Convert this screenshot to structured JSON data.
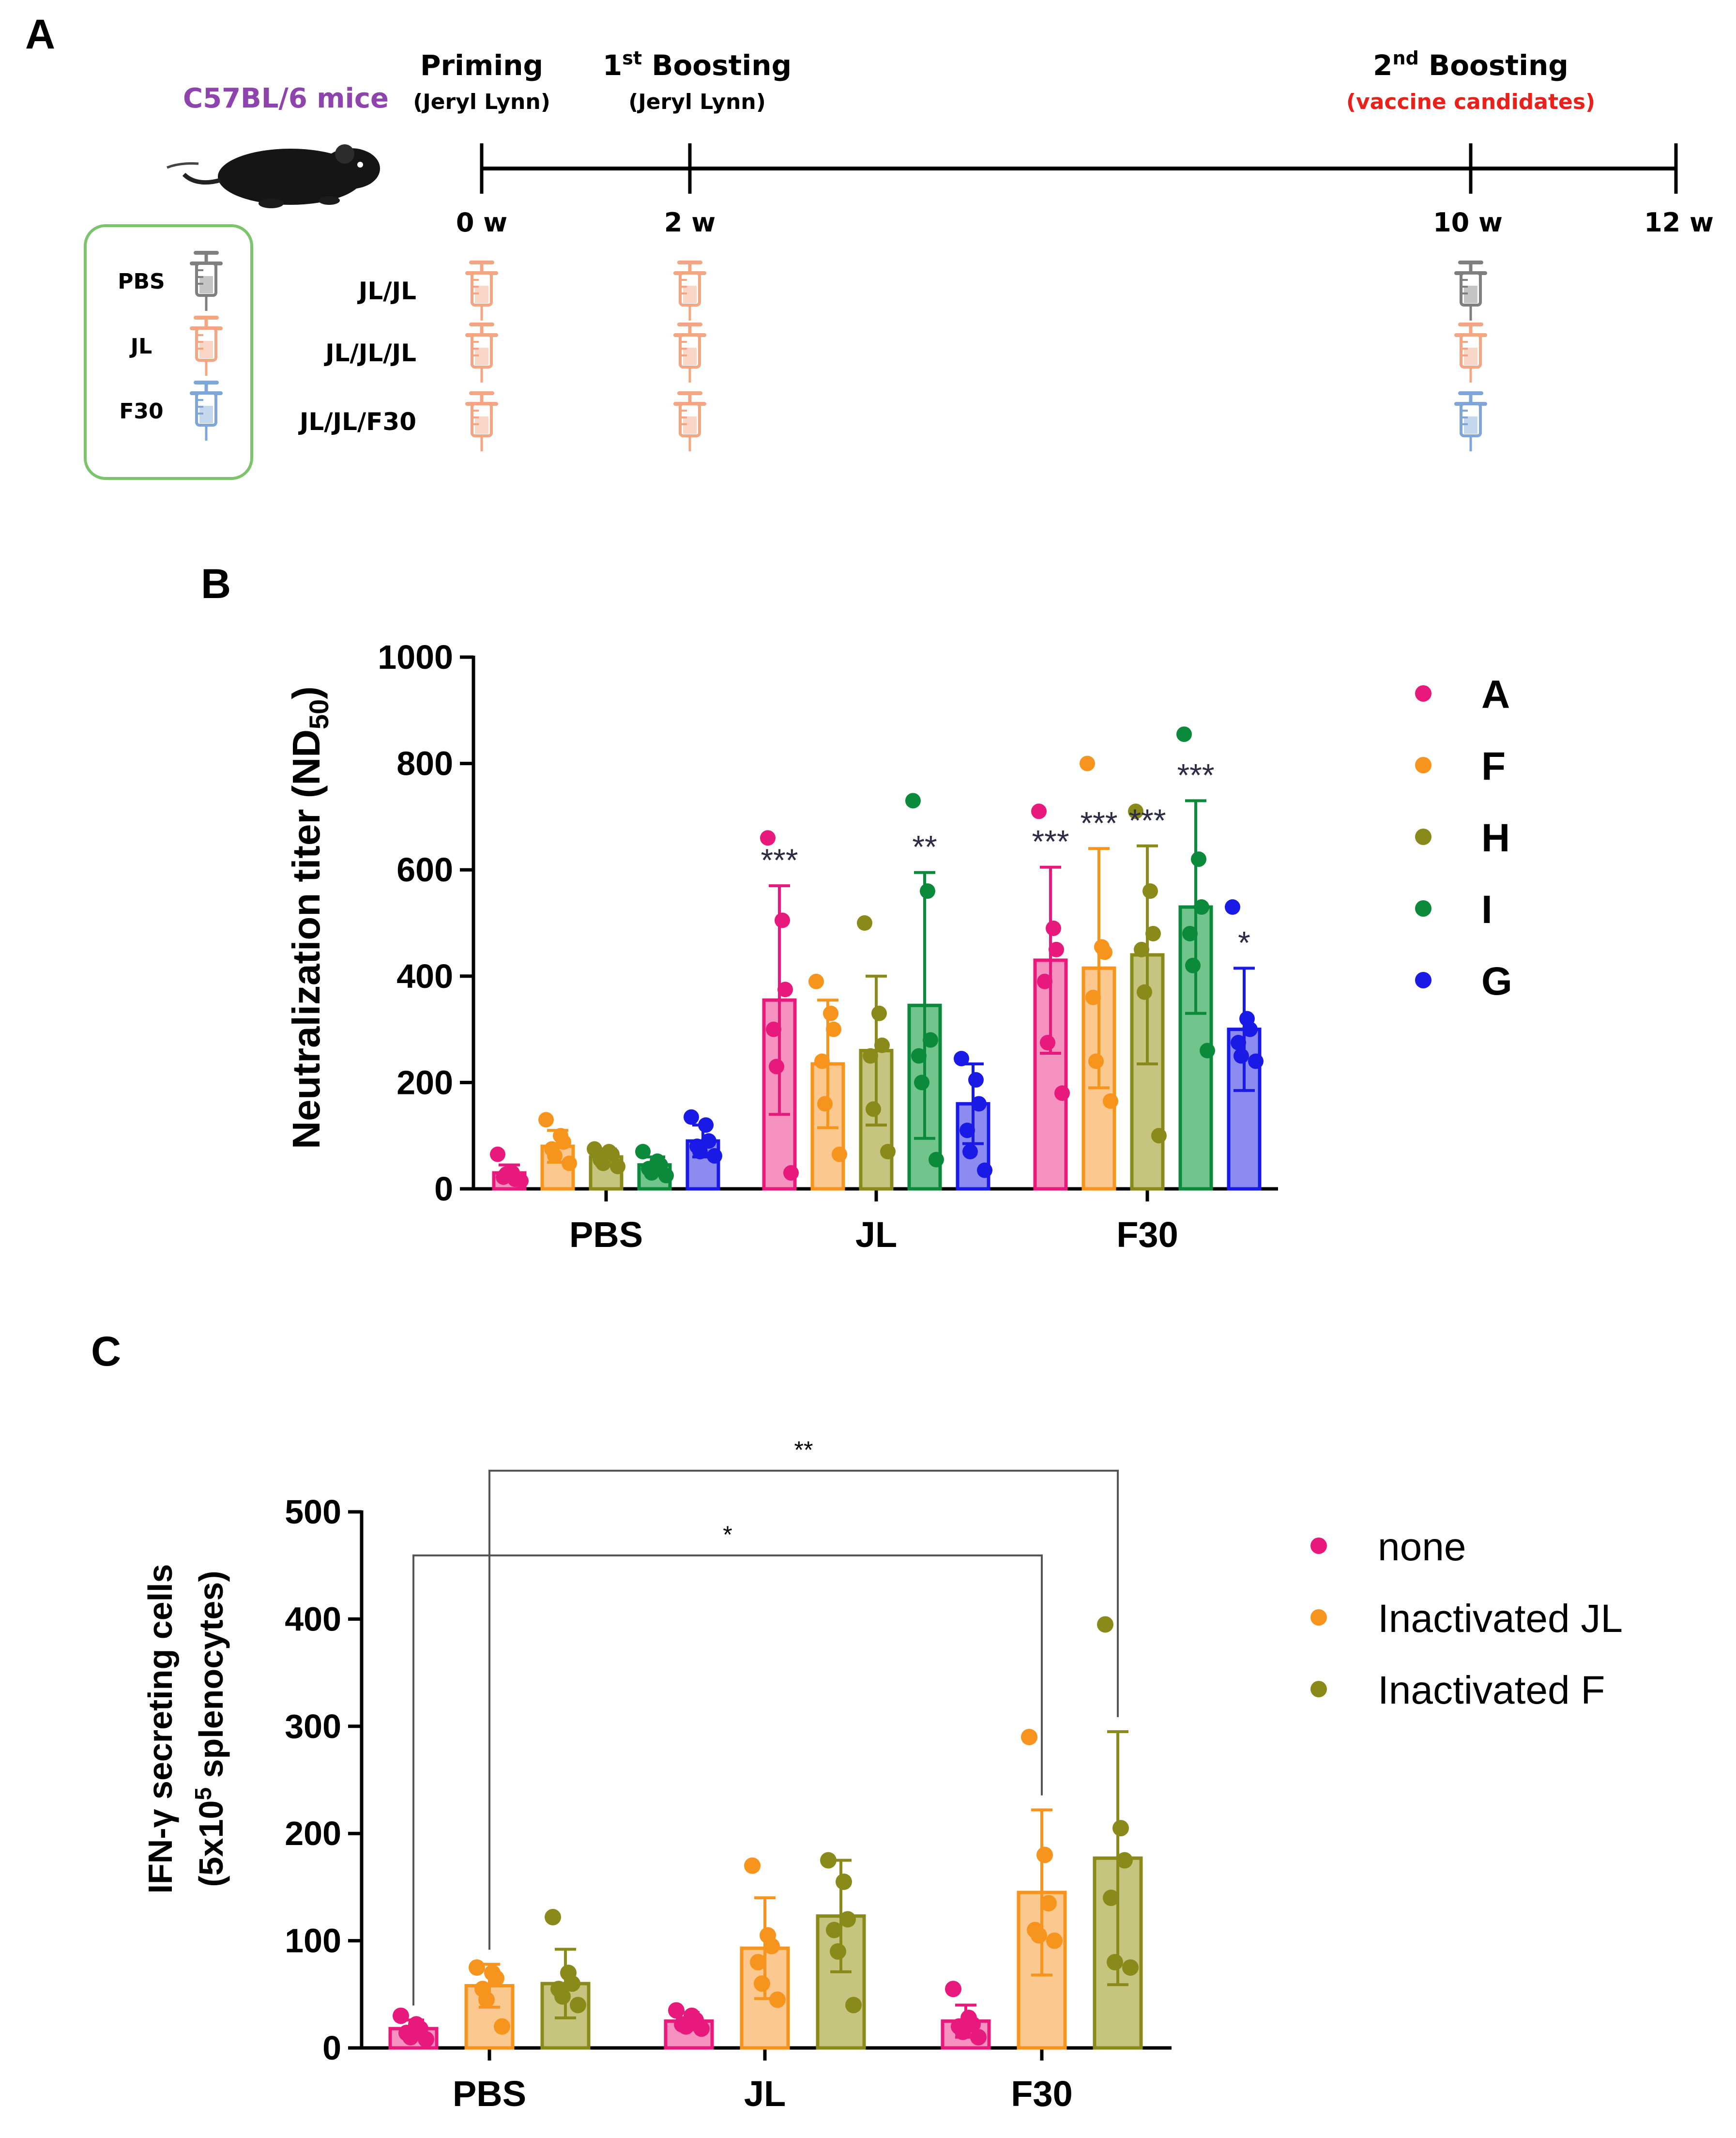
{
  "panelA": {
    "label": "A",
    "mice_label": "C57BL/6 mice",
    "events": [
      {
        "title": "Priming",
        "sub": "(Jeryl Lynn)",
        "sub_red": false
      },
      {
        "title": "1st Boosting",
        "sub": "(Jeryl Lynn)",
        "sub_red": false
      },
      {
        "title": "2nd Boosting",
        "sub": "(vaccine candidates)",
        "sub_red": true
      }
    ],
    "weeks": [
      "0 w",
      "2 w",
      "10 w",
      "12 w"
    ],
    "legend": [
      {
        "label": "PBS",
        "color": "#7f7f7f"
      },
      {
        "label": "JL",
        "color": "#f4a582"
      },
      {
        "label": "F30",
        "color": "#7ea6d8"
      }
    ],
    "groups": [
      {
        "label": "JL/JL",
        "doses": [
          "#f4a582",
          "#f4a582",
          "#7f7f7f"
        ]
      },
      {
        "label": "JL/JL/JL",
        "doses": [
          "#f4a582",
          "#f4a582",
          "#f4a582"
        ]
      },
      {
        "label": "JL/JL/F30",
        "doses": [
          "#f4a582",
          "#f4a582",
          "#7ea6d8"
        ]
      }
    ]
  },
  "panelB": {
    "label": "B",
    "chart_data": {
      "type": "bar",
      "ylabel": "Neutralization titer (ND50)",
      "ylim": [
        0,
        1000
      ],
      "yticks": [
        0,
        200,
        400,
        600,
        800,
        1000
      ],
      "categories": [
        "PBS",
        "JL",
        "F30"
      ],
      "legend_position": "right",
      "series": [
        {
          "name": "A",
          "color": "#e8197d",
          "fill": "#f592bf",
          "means": [
            30,
            355,
            430
          ],
          "sd": [
            15,
            215,
            175
          ],
          "points": [
            [
              65,
              30,
              18,
              22,
              28,
              15
            ],
            [
              660,
              505,
              375,
              300,
              230,
              30
            ],
            [
              710,
              490,
              450,
              390,
              275,
              180
            ]
          ],
          "stars": [
            "",
            "***",
            "***"
          ]
        },
        {
          "name": "F",
          "color": "#f7941d",
          "fill": "#fbc98f",
          "means": [
            80,
            235,
            415
          ],
          "sd": [
            30,
            120,
            225
          ],
          "points": [
            [
              130,
              100,
              88,
              75,
              62,
              48
            ],
            [
              390,
              330,
              300,
              240,
              160,
              65
            ],
            [
              800,
              455,
              445,
              360,
              240,
              165
            ]
          ],
          "stars": [
            "",
            "",
            "***"
          ]
        },
        {
          "name": "H",
          "color": "#8a8a1a",
          "fill": "#c5c57f",
          "means": [
            60,
            260,
            440
          ],
          "sd": [
            15,
            140,
            205
          ],
          "points": [
            [
              75,
              70,
              65,
              55,
              48,
              42
            ],
            [
              500,
              330,
              270,
              250,
              150,
              70
            ],
            [
              710,
              560,
              480,
              450,
              370,
              100
            ]
          ],
          "stars": [
            "",
            "",
            "***"
          ]
        },
        {
          "name": "I",
          "color": "#0a8a3a",
          "fill": "#70c48c",
          "means": [
            45,
            345,
            530
          ],
          "sd": [
            15,
            250,
            200
          ],
          "points": [
            [
              70,
              52,
              45,
              38,
              30,
              25
            ],
            [
              730,
              560,
              280,
              250,
              200,
              55
            ],
            [
              855,
              620,
              530,
              480,
              420,
              260
            ]
          ],
          "stars": [
            "",
            "**",
            "***"
          ]
        },
        {
          "name": "G",
          "color": "#1a1ae6",
          "fill": "#8c8cf0",
          "means": [
            90,
            160,
            300
          ],
          "sd": [
            30,
            75,
            115
          ],
          "points": [
            [
              135,
              120,
              90,
              80,
              70,
              62
            ],
            [
              245,
              205,
              160,
              110,
              70,
              35
            ],
            [
              530,
              320,
              300,
              275,
              250,
              240
            ]
          ],
          "stars": [
            "",
            "",
            "*"
          ]
        }
      ]
    }
  },
  "panelC": {
    "label": "C",
    "chart_data": {
      "type": "bar",
      "ylabel_line1": "IFN-γ secreting cells",
      "ylabel_line2": "(5x105 splenocytes)",
      "ylim": [
        0,
        500
      ],
      "yticks": [
        0,
        100,
        200,
        300,
        400,
        500
      ],
      "categories": [
        "PBS",
        "JL",
        "F30"
      ],
      "legend_position": "right",
      "series": [
        {
          "name": "none",
          "color": "#e8197d",
          "fill": "#f592bf",
          "means": [
            18,
            25,
            25
          ],
          "sd": [
            8,
            8,
            15
          ],
          "points": [
            [
              30,
              22,
              18,
              14,
              10,
              8
            ],
            [
              35,
              30,
              26,
              22,
              20,
              18
            ],
            [
              55,
              28,
              22,
              20,
              15,
              10
            ]
          ]
        },
        {
          "name": "Inactivated JL",
          "color": "#f7941d",
          "fill": "#fbc98f",
          "means": [
            58,
            93,
            145
          ],
          "sd": [
            20,
            47,
            77
          ],
          "points": [
            [
              75,
              70,
              65,
              55,
              45,
              20
            ],
            [
              170,
              105,
              95,
              80,
              60,
              45
            ],
            [
              290,
              180,
              135,
              110,
              105,
              100
            ]
          ]
        },
        {
          "name": "Inactivated F",
          "color": "#8a8a1a",
          "fill": "#c5c57f",
          "means": [
            60,
            123,
            177
          ],
          "sd": [
            32,
            52,
            118
          ],
          "points": [
            [
              122,
              70,
              60,
              55,
              48,
              40
            ],
            [
              175,
              155,
              120,
              110,
              90,
              40
            ],
            [
              395,
              205,
              175,
              140,
              80,
              75
            ]
          ]
        }
      ],
      "comparisons": [
        {
          "from_category": 0,
          "from_series": 1,
          "to_category": 2,
          "to_series": 2,
          "label": "**"
        },
        {
          "from_category": 0,
          "from_series": 0,
          "to_category": 2,
          "to_series": 1,
          "label": "*"
        }
      ]
    }
  }
}
